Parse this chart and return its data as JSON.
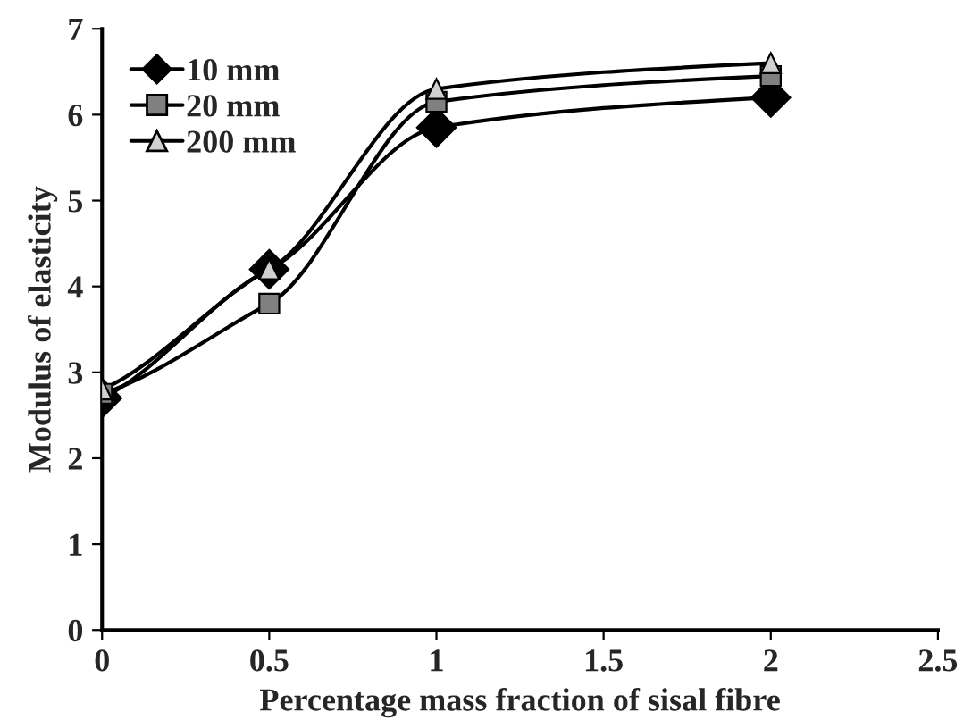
{
  "chart_data": {
    "type": "line",
    "xlabel": "Percentage mass fraction of sisal fibre",
    "ylabel": "Modulus of elasticity",
    "x": [
      0,
      0.5,
      1,
      2
    ],
    "series": [
      {
        "name": "10 mm",
        "color": "#000000",
        "marker": "diamond",
        "values": [
          2.7,
          4.2,
          5.85,
          6.2
        ]
      },
      {
        "name": "20 mm",
        "color": "#808080",
        "marker": "square",
        "values": [
          2.75,
          3.8,
          6.15,
          6.45
        ]
      },
      {
        "name": "200 mm",
        "color": "#d0d0d0",
        "marker": "triangle",
        "values": [
          2.8,
          4.2,
          6.3,
          6.6
        ]
      }
    ],
    "xlim": [
      0,
      2.5
    ],
    "xticks": [
      0,
      0.5,
      1,
      1.5,
      2,
      2.5
    ],
    "ylim": [
      0,
      7
    ],
    "yticks": [
      0,
      1,
      2,
      3,
      4,
      5,
      6,
      7
    ],
    "grid": false,
    "legend": "top left",
    "line_style": "solid"
  }
}
